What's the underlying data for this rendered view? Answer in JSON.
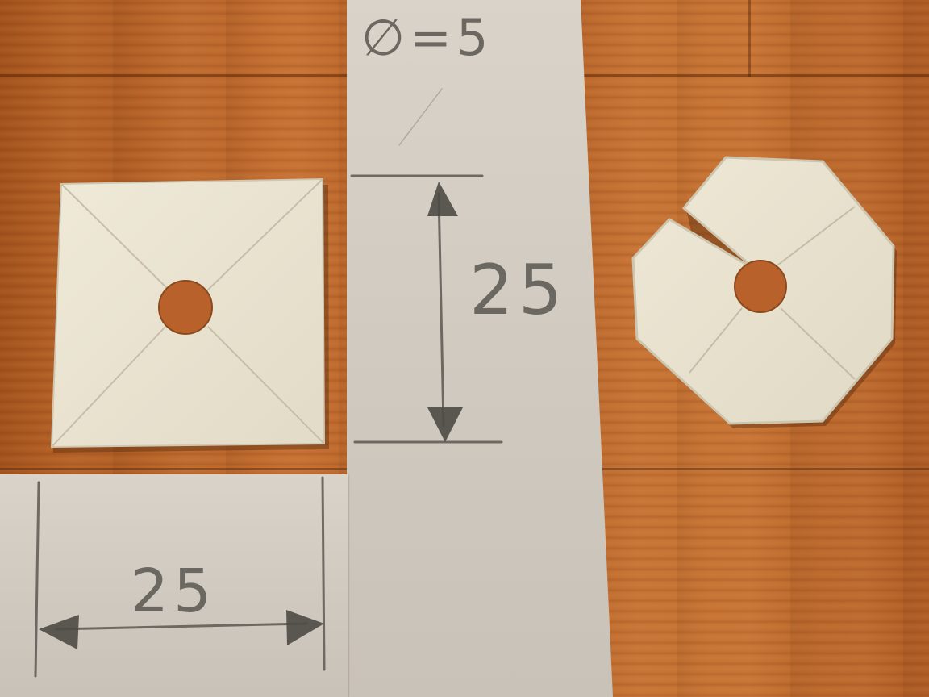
{
  "scene": {
    "palette": {
      "wood": "#b4602a",
      "paper": "#d2ccc2",
      "plastic": "#ece6d4",
      "pencil": "#5a5650"
    },
    "objects": [
      "square-plate",
      "octagon-plate",
      "paper-strip-vertical",
      "paper-strip-horizontal"
    ]
  },
  "annotations": {
    "diameter": "∅=5",
    "vertical_dimension": "25",
    "horizontal_dimension": "25"
  }
}
